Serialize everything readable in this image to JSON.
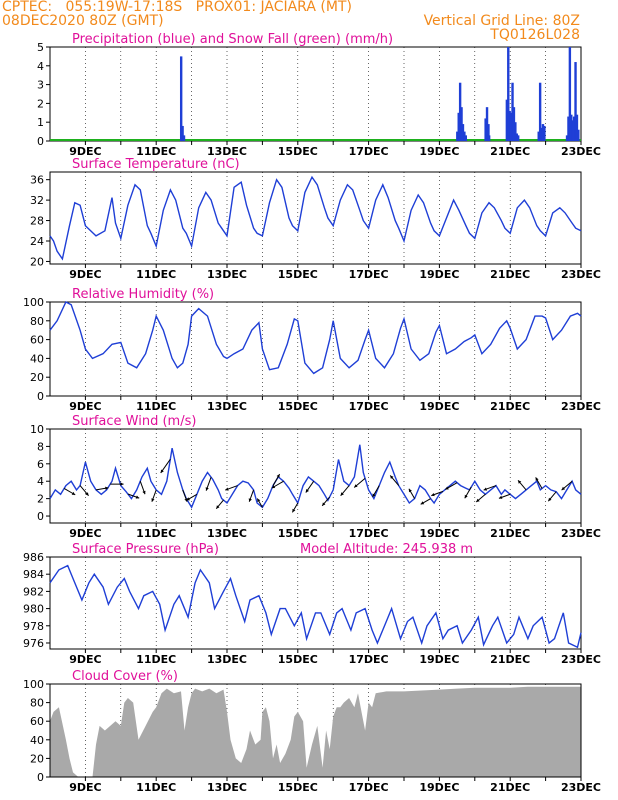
{
  "header": {
    "line1": "CPTEC:   055:19W-17:18S   PROX01: JACIARA (MT)",
    "line2": "08DEC2020 80Z (GMT)",
    "grid_note": "Vertical Grid Line: 80Z",
    "run_code": "TQ0126L028"
  },
  "colors": {
    "header": "#f28a1c",
    "title": "#e0109a",
    "series": "#1f3fd6",
    "snow": "#1db01d",
    "cloud": "#a9a9a9",
    "arrow": "#000000"
  },
  "chart_data": [
    {
      "id": "precip",
      "type": "bar",
      "title": "Precipitation (blue) and Snow Fall (green) (mm/h)",
      "x_tick_labels": [
        "9DEC",
        "11DEC",
        "13DEC",
        "15DEC",
        "17DEC",
        "19DEC",
        "21DEC",
        "23DEC"
      ],
      "xlim": [
        8.0,
        23.0
      ],
      "ylim": [
        0,
        5
      ],
      "y_ticks": [
        0,
        1,
        2,
        3,
        4,
        5
      ],
      "grid": "vertical dotted at 00Z",
      "series": [
        {
          "name": "Precipitation",
          "x": [
            11.7,
            11.74,
            11.78,
            19.5,
            19.54,
            19.58,
            19.62,
            19.66,
            19.7,
            19.74,
            20.3,
            20.34,
            20.38,
            20.4,
            20.9,
            20.94,
            20.98,
            21.02,
            21.06,
            21.1,
            21.14,
            21.18,
            21.22,
            21.8,
            21.84,
            21.88,
            21.92,
            21.96,
            22.6,
            22.64,
            22.68,
            22.72,
            22.76,
            22.8,
            22.84,
            22.88,
            22.92
          ],
          "values": [
            4.5,
            0.8,
            0.3,
            0.5,
            1.5,
            3.1,
            1.8,
            0.9,
            0.5,
            0.3,
            1.2,
            1.8,
            0.9,
            0.3,
            2.2,
            5.0,
            1.6,
            1.5,
            3.1,
            1.8,
            1.0,
            0.4,
            0.3,
            0.5,
            3.1,
            0.7,
            0.9,
            0.8,
            0.3,
            1.3,
            5.0,
            1.4,
            1.1,
            1.3,
            4.2,
            1.4,
            0.6
          ]
        },
        {
          "name": "Snow Fall",
          "x": [
            8.0,
            23.0
          ],
          "values": [
            0,
            0
          ]
        }
      ]
    },
    {
      "id": "temp",
      "type": "line",
      "title": "Surface Temperature (nC)",
      "x_tick_labels": [
        "9DEC",
        "11DEC",
        "13DEC",
        "15DEC",
        "17DEC",
        "19DEC",
        "21DEC",
        "23DEC"
      ],
      "xlim": [
        8.0,
        23.0
      ],
      "ylim": [
        19.5,
        37.5
      ],
      "y_ticks": [
        20,
        24,
        28,
        32,
        36
      ],
      "x": [
        8.0,
        8.1,
        8.2,
        8.35,
        8.55,
        8.7,
        8.85,
        9.0,
        9.3,
        9.55,
        9.75,
        9.85,
        10.0,
        10.2,
        10.4,
        10.55,
        10.75,
        10.85,
        11.0,
        11.2,
        11.4,
        11.55,
        11.75,
        11.85,
        12.0,
        12.2,
        12.4,
        12.55,
        12.75,
        12.85,
        13.0,
        13.2,
        13.4,
        13.55,
        13.75,
        13.85,
        14.0,
        14.2,
        14.4,
        14.55,
        14.75,
        14.85,
        15.0,
        15.2,
        15.4,
        15.55,
        15.75,
        15.85,
        16.0,
        16.2,
        16.4,
        16.55,
        16.75,
        16.85,
        17.0,
        17.2,
        17.4,
        17.55,
        17.75,
        17.85,
        18.0,
        18.2,
        18.4,
        18.55,
        18.75,
        18.85,
        19.0,
        19.2,
        19.4,
        19.55,
        19.75,
        19.85,
        20.0,
        20.2,
        20.4,
        20.55,
        20.75,
        20.85,
        21.0,
        21.2,
        21.4,
        21.55,
        21.75,
        21.85,
        22.0,
        22.2,
        22.4,
        22.55,
        22.75,
        22.85,
        23.0
      ],
      "values": [
        25,
        24,
        22,
        20.5,
        27,
        31.5,
        31,
        27,
        25,
        26,
        32.5,
        27.5,
        24.5,
        31,
        35,
        34,
        27,
        25.5,
        23,
        30,
        34,
        32,
        26.5,
        25.5,
        23,
        30.5,
        33.5,
        32,
        27.5,
        26.5,
        25,
        34.5,
        35.5,
        31,
        26.5,
        25.5,
        25,
        31.5,
        36,
        34.5,
        28.5,
        27,
        26,
        33.5,
        36.5,
        35,
        30.5,
        28.5,
        27,
        32,
        35,
        34,
        30,
        28,
        26.5,
        32,
        35,
        32.5,
        28,
        26.5,
        24,
        30,
        33,
        31.5,
        27.5,
        26,
        25,
        28.5,
        32,
        30,
        27,
        25.5,
        24.5,
        29.5,
        31.5,
        30.5,
        28,
        26.5,
        25.5,
        30.5,
        32,
        30.5,
        27,
        26,
        25,
        29.5,
        30.5,
        29.5,
        27.5,
        26.5,
        26
      ]
    },
    {
      "id": "rh",
      "type": "line",
      "title": "Relative Humidity (%)",
      "x_tick_labels": [
        "9DEC",
        "11DEC",
        "13DEC",
        "15DEC",
        "17DEC",
        "19DEC",
        "21DEC",
        "23DEC"
      ],
      "xlim": [
        8.0,
        23.0
      ],
      "ylim": [
        0,
        100
      ],
      "y_ticks": [
        0,
        20,
        40,
        60,
        80,
        100
      ],
      "x": [
        8.0,
        8.2,
        8.45,
        8.6,
        8.85,
        9.0,
        9.2,
        9.5,
        9.75,
        10.0,
        10.2,
        10.45,
        10.7,
        10.9,
        11.0,
        11.2,
        11.45,
        11.6,
        11.75,
        11.9,
        12.0,
        12.2,
        12.45,
        12.7,
        12.9,
        13.0,
        13.2,
        13.45,
        13.7,
        13.9,
        14.0,
        14.2,
        14.45,
        14.7,
        14.9,
        15.0,
        15.2,
        15.45,
        15.7,
        15.9,
        16.0,
        16.2,
        16.45,
        16.7,
        16.9,
        17.0,
        17.2,
        17.45,
        17.7,
        17.9,
        18.0,
        18.2,
        18.45,
        18.7,
        18.9,
        19.0,
        19.2,
        19.45,
        19.7,
        19.9,
        20.0,
        20.2,
        20.45,
        20.7,
        20.9,
        21.0,
        21.2,
        21.45,
        21.7,
        21.9,
        22.0,
        22.2,
        22.45,
        22.7,
        22.9,
        23.0
      ],
      "values": [
        70,
        80,
        100,
        97,
        70,
        50,
        40,
        45,
        55,
        57,
        35,
        30,
        45,
        70,
        85,
        70,
        40,
        30,
        35,
        55,
        85,
        93,
        85,
        55,
        42,
        40,
        45,
        50,
        70,
        78,
        50,
        28,
        30,
        55,
        82,
        80,
        35,
        24,
        30,
        60,
        80,
        40,
        30,
        38,
        60,
        70,
        40,
        30,
        45,
        72,
        82,
        50,
        38,
        45,
        68,
        75,
        45,
        50,
        58,
        62,
        65,
        45,
        55,
        72,
        80,
        72,
        50,
        60,
        85,
        85,
        83,
        60,
        70,
        85,
        88,
        85
      ]
    },
    {
      "id": "wind",
      "type": "line",
      "title": "Surface Wind (m/s)",
      "x_tick_labels": [
        "9DEC",
        "11DEC",
        "13DEC",
        "15DEC",
        "17DEC",
        "19DEC",
        "21DEC",
        "23DEC"
      ],
      "xlim": [
        8.0,
        23.0
      ],
      "ylim": [
        -0.8,
        10
      ],
      "y_ticks": [
        0,
        2,
        4,
        6,
        8,
        10
      ],
      "x": [
        8.0,
        8.15,
        8.3,
        8.45,
        8.6,
        8.75,
        8.85,
        9.0,
        9.15,
        9.3,
        9.45,
        9.6,
        9.75,
        9.85,
        10.0,
        10.15,
        10.3,
        10.45,
        10.6,
        10.75,
        10.85,
        11.0,
        11.15,
        11.3,
        11.45,
        11.6,
        11.75,
        11.85,
        12.0,
        12.15,
        12.3,
        12.45,
        12.6,
        12.75,
        12.85,
        13.0,
        13.15,
        13.3,
        13.45,
        13.6,
        13.75,
        13.85,
        14.0,
        14.15,
        14.3,
        14.45,
        14.6,
        14.75,
        14.85,
        15.0,
        15.15,
        15.3,
        15.45,
        15.6,
        15.75,
        15.85,
        16.0,
        16.15,
        16.3,
        16.45,
        16.6,
        16.75,
        16.85,
        17.0,
        17.15,
        17.3,
        17.45,
        17.6,
        17.75,
        17.85,
        18.0,
        18.15,
        18.3,
        18.45,
        18.6,
        18.75,
        18.85,
        19.0,
        19.15,
        19.3,
        19.45,
        19.6,
        19.75,
        19.85,
        20.0,
        20.15,
        20.3,
        20.45,
        20.6,
        20.75,
        20.85,
        21.0,
        21.15,
        21.3,
        21.45,
        21.6,
        21.75,
        21.85,
        22.0,
        22.15,
        22.3,
        22.45,
        22.6,
        22.75,
        22.85,
        23.0
      ],
      "values": [
        2,
        3,
        2.5,
        3.5,
        4,
        3,
        3.5,
        6.2,
        4,
        3,
        2.5,
        3,
        4,
        5.5,
        3.5,
        2.8,
        2,
        3,
        4.5,
        5.5,
        4,
        3,
        2.5,
        4,
        7.8,
        5,
        3,
        2,
        1,
        2.5,
        4,
        5,
        4.2,
        3,
        2,
        1.5,
        2.5,
        3.5,
        4,
        3.8,
        3,
        1.5,
        1,
        2,
        3.5,
        4.5,
        4,
        3.2,
        2.5,
        1.5,
        3.5,
        4.5,
        4,
        3.5,
        2.5,
        1.8,
        3,
        6.5,
        4,
        3.5,
        4.5,
        8.2,
        5,
        3,
        2,
        3.5,
        5,
        6.2,
        4.5,
        3.5,
        2.5,
        1.5,
        2,
        3.5,
        3,
        2,
        1.5,
        2.5,
        3,
        3.5,
        4,
        3.5,
        3.2,
        3,
        4,
        3,
        2.5,
        3,
        3.5,
        2.5,
        3,
        2.5,
        2,
        2.5,
        3,
        3.5,
        4,
        3,
        3.5,
        3,
        2.8,
        2,
        3,
        4,
        3,
        2.5
      ],
      "arrows": [
        {
          "x": 8.4,
          "dir_deg": 120
        },
        {
          "x": 8.85,
          "dir_deg": 140
        },
        {
          "x": 9.3,
          "dir_deg": 80
        },
        {
          "x": 9.7,
          "dir_deg": 90
        },
        {
          "x": 10.2,
          "dir_deg": 110
        },
        {
          "x": 10.55,
          "dir_deg": 160
        },
        {
          "x": 11.0,
          "dir_deg": 200
        },
        {
          "x": 11.4,
          "dir_deg": 215
        },
        {
          "x": 11.75,
          "dir_deg": 160
        },
        {
          "x": 12.15,
          "dir_deg": 240
        },
        {
          "x": 12.55,
          "dir_deg": 200
        },
        {
          "x": 12.9,
          "dir_deg": 220
        },
        {
          "x": 13.3,
          "dir_deg": 250
        },
        {
          "x": 13.75,
          "dir_deg": 200
        },
        {
          "x": 14.0,
          "dir_deg": 330
        },
        {
          "x": 14.3,
          "dir_deg": 30
        },
        {
          "x": 14.6,
          "dir_deg": 240
        },
        {
          "x": 15.0,
          "dir_deg": 210
        },
        {
          "x": 15.45,
          "dir_deg": 215
        },
        {
          "x": 15.9,
          "dir_deg": 220
        },
        {
          "x": 16.45,
          "dir_deg": 220
        },
        {
          "x": 16.9,
          "dir_deg": 230
        },
        {
          "x": 17.3,
          "dir_deg": 210
        },
        {
          "x": 17.85,
          "dir_deg": 320
        },
        {
          "x": 18.3,
          "dir_deg": 330
        },
        {
          "x": 18.75,
          "dir_deg": 240
        },
        {
          "x": 19.1,
          "dir_deg": 250
        },
        {
          "x": 19.5,
          "dir_deg": 240
        },
        {
          "x": 19.9,
          "dir_deg": 210
        },
        {
          "x": 20.3,
          "dir_deg": 230
        },
        {
          "x": 20.6,
          "dir_deg": 250
        },
        {
          "x": 21.0,
          "dir_deg": 250
        },
        {
          "x": 21.45,
          "dir_deg": 320
        },
        {
          "x": 21.9,
          "dir_deg": 330
        },
        {
          "x": 22.3,
          "dir_deg": 220
        },
        {
          "x": 22.75,
          "dir_deg": 230
        }
      ]
    },
    {
      "id": "pres",
      "type": "line",
      "title": "Surface Pressure (hPa)",
      "subtitle": "Model Altitude: 245.938 m",
      "x_tick_labels": [
        "9DEC",
        "11DEC",
        "13DEC",
        "15DEC",
        "17DEC",
        "19DEC",
        "21DEC",
        "23DEC"
      ],
      "xlim": [
        8.0,
        23.0
      ],
      "ylim": [
        975.3,
        986
      ],
      "y_ticks": [
        976,
        978,
        980,
        982,
        984,
        986
      ],
      "x": [
        8.0,
        8.25,
        8.5,
        8.65,
        8.9,
        9.1,
        9.25,
        9.5,
        9.65,
        9.9,
        10.1,
        10.25,
        10.5,
        10.65,
        10.9,
        11.1,
        11.25,
        11.5,
        11.65,
        11.9,
        12.1,
        12.25,
        12.5,
        12.65,
        12.9,
        13.1,
        13.25,
        13.5,
        13.65,
        13.9,
        14.1,
        14.25,
        14.5,
        14.65,
        14.9,
        15.1,
        15.25,
        15.5,
        15.65,
        15.9,
        16.1,
        16.25,
        16.5,
        16.65,
        16.9,
        17.1,
        17.25,
        17.5,
        17.65,
        17.9,
        18.1,
        18.25,
        18.5,
        18.65,
        18.9,
        19.1,
        19.25,
        19.5,
        19.65,
        19.9,
        20.1,
        20.25,
        20.5,
        20.65,
        20.9,
        21.1,
        21.25,
        21.5,
        21.65,
        21.9,
        22.1,
        22.25,
        22.5,
        22.65,
        22.9,
        23.0
      ],
      "values": [
        983,
        984.5,
        985,
        983.5,
        981,
        983,
        984,
        982.5,
        980.5,
        982.5,
        983.5,
        982,
        980,
        981.5,
        982,
        980.5,
        977.5,
        980.5,
        981.5,
        979,
        983,
        984.5,
        983,
        980,
        982,
        983.5,
        981.5,
        978.5,
        981,
        981.5,
        979.5,
        977,
        980,
        980,
        978,
        979.5,
        976.5,
        979.5,
        979.5,
        977,
        979.5,
        980,
        977.5,
        979.5,
        980,
        977.5,
        976,
        978.5,
        980,
        976.5,
        978.5,
        979,
        976,
        978,
        979.5,
        976.5,
        977.5,
        978,
        976,
        977.5,
        979,
        975.8,
        978,
        979,
        976,
        977,
        979,
        976.5,
        978,
        979,
        976,
        976.5,
        979.5,
        976,
        975.5,
        977.2
      ]
    },
    {
      "id": "cloud",
      "type": "area",
      "title": "Cloud Cover (%)",
      "x_tick_labels": [
        "9DEC",
        "11DEC",
        "13DEC",
        "15DEC",
        "17DEC",
        "19DEC",
        "21DEC",
        "23DEC"
      ],
      "xlim": [
        8.0,
        23.0
      ],
      "ylim": [
        0,
        100
      ],
      "y_ticks": [
        0,
        20,
        40,
        60,
        80,
        100
      ],
      "x": [
        8.0,
        8.1,
        8.25,
        8.45,
        8.55,
        8.65,
        8.8,
        9.0,
        9.2,
        9.3,
        9.4,
        9.55,
        9.7,
        9.85,
        10.0,
        10.1,
        10.2,
        10.35,
        10.5,
        10.7,
        10.9,
        11.0,
        11.15,
        11.3,
        11.5,
        11.7,
        11.8,
        11.9,
        12.0,
        12.1,
        12.3,
        12.5,
        12.7,
        12.9,
        13.0,
        13.1,
        13.25,
        13.4,
        13.55,
        13.65,
        13.8,
        13.95,
        14.0,
        14.1,
        14.2,
        14.3,
        14.4,
        14.5,
        14.65,
        14.8,
        14.9,
        15.0,
        15.15,
        15.25,
        15.4,
        15.55,
        15.7,
        15.8,
        15.9,
        16.0,
        16.1,
        16.2,
        16.3,
        16.45,
        16.6,
        16.7,
        16.8,
        16.9,
        17.0,
        17.1,
        17.2,
        17.5,
        18.0,
        18.5,
        19.0,
        19.5,
        20.0,
        20.5,
        21.0,
        21.5,
        22.0,
        22.5,
        23.0
      ],
      "values": [
        60,
        70,
        75,
        40,
        20,
        5,
        0,
        0,
        0,
        35,
        55,
        50,
        55,
        60,
        55,
        80,
        85,
        80,
        40,
        55,
        70,
        75,
        90,
        95,
        90,
        92,
        50,
        75,
        90,
        95,
        92,
        95,
        90,
        94,
        70,
        40,
        20,
        15,
        30,
        50,
        35,
        40,
        70,
        75,
        60,
        20,
        35,
        15,
        25,
        40,
        65,
        70,
        60,
        10,
        35,
        55,
        10,
        50,
        30,
        65,
        75,
        75,
        80,
        85,
        75,
        90,
        70,
        50,
        80,
        75,
        90,
        92,
        92,
        93,
        94,
        95,
        96,
        96,
        96,
        97,
        97,
        97,
        97
      ]
    }
  ]
}
